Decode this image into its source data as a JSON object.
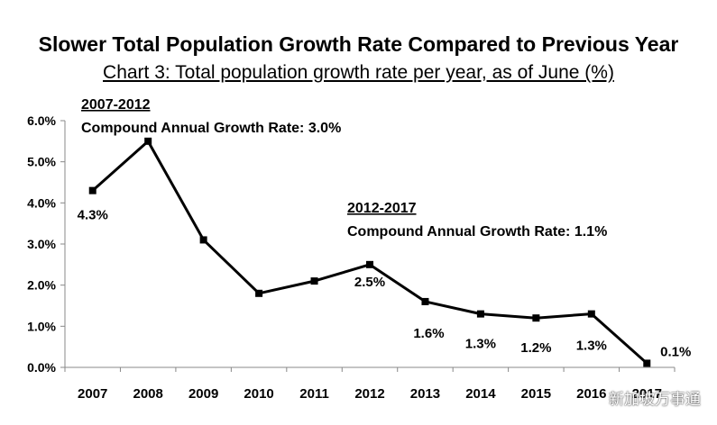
{
  "watermark": "新加坡万事通",
  "chart_data": {
    "type": "line",
    "title": "Slower Total Population Growth Rate Compared to Previous Year",
    "subtitle": "Chart 3: Total population growth rate per year, as of June (%)",
    "categories": [
      "2007",
      "2008",
      "2009",
      "2010",
      "2011",
      "2012",
      "2013",
      "2014",
      "2015",
      "2016",
      "2017"
    ],
    "series": [
      {
        "values": [
          4.3,
          5.5,
          3.1,
          1.8,
          2.1,
          2.5,
          1.6,
          1.3,
          1.2,
          1.3,
          0.1
        ]
      }
    ],
    "data_labels": [
      "4.3%",
      "",
      "",
      "",
      "",
      "2.5%",
      "1.6%",
      "1.3%",
      "1.2%",
      "1.3%",
      "0.1%"
    ],
    "y_ticks": [
      "0.0%",
      "1.0%",
      "2.0%",
      "3.0%",
      "4.0%",
      "5.0%",
      "6.0%"
    ],
    "ylim": [
      0,
      6
    ],
    "grid": false,
    "line_color": "#000000",
    "annotations": [
      {
        "heading": "2007-2012",
        "text": "Compound Annual Growth Rate: 3.0%"
      },
      {
        "heading": "2012-2017",
        "text": "Compound Annual Growth Rate: 1.1%"
      }
    ]
  }
}
